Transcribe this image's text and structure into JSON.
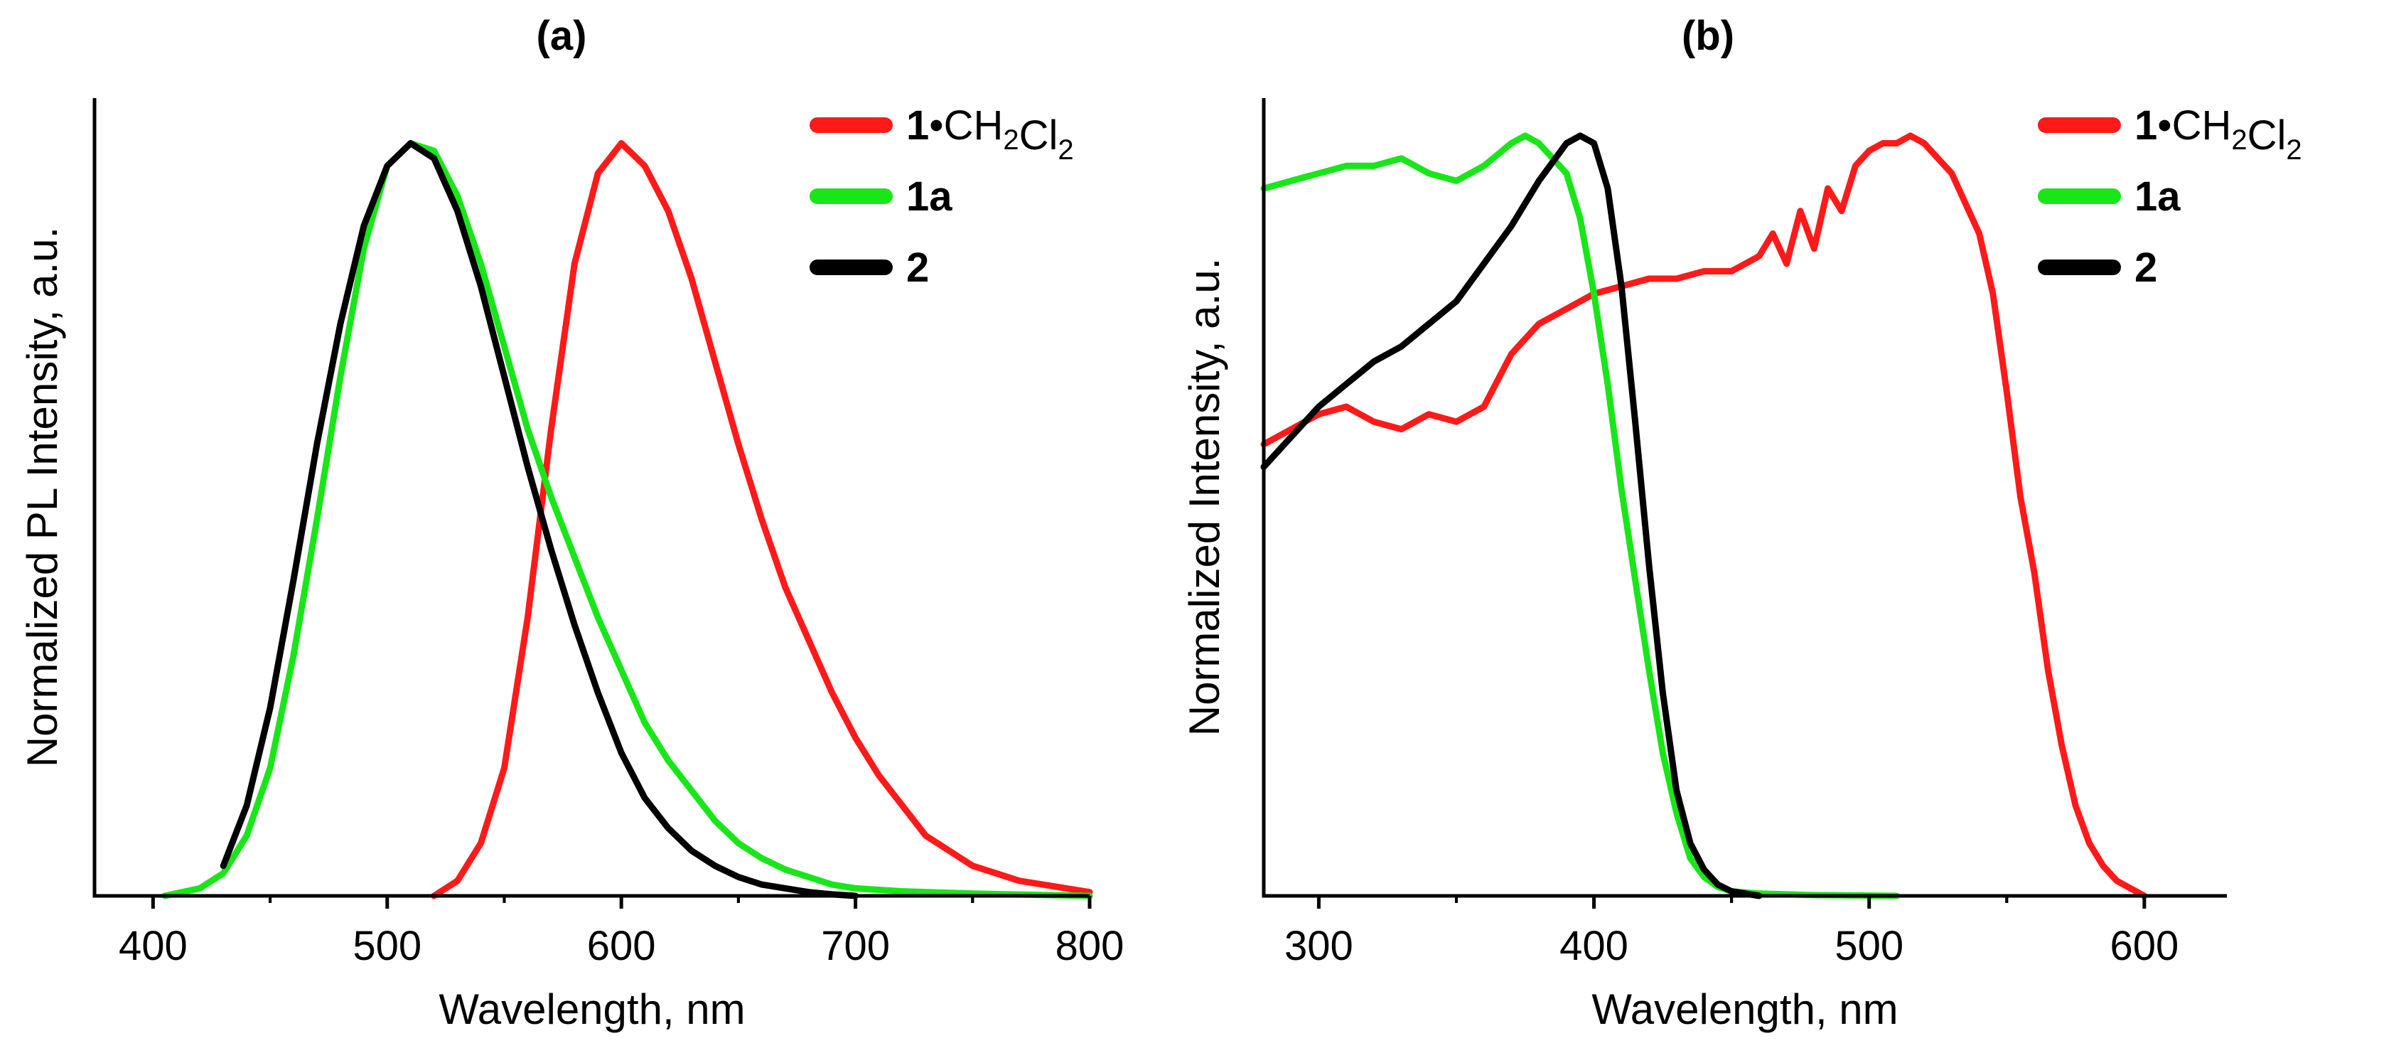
{
  "chart_data": [
    {
      "panel": "a",
      "type": "line",
      "title": "(a)",
      "xlabel": "Wavelength, nm",
      "ylabel": "Normalized PL Intensity, a.u.",
      "xlim": [
        375,
        800
      ],
      "ylim": [
        0,
        1.06
      ],
      "xticks": [
        400,
        500,
        600,
        700,
        800
      ],
      "grid": false,
      "legend": "top-right",
      "series": [
        {
          "name": "1•CH2Cl2",
          "label_main": "1",
          "label_rest": "•CH2Cl2",
          "color": "#ff1a1a",
          "x": [
            520,
            530,
            540,
            550,
            560,
            570,
            580,
            590,
            600,
            610,
            620,
            630,
            640,
            650,
            660,
            670,
            680,
            690,
            700,
            710,
            720,
            730,
            740,
            750,
            760,
            770,
            780,
            790,
            800
          ],
          "y": [
            0.0,
            0.02,
            0.07,
            0.17,
            0.37,
            0.62,
            0.84,
            0.96,
            1.0,
            0.97,
            0.91,
            0.82,
            0.71,
            0.6,
            0.5,
            0.41,
            0.34,
            0.27,
            0.21,
            0.16,
            0.12,
            0.08,
            0.06,
            0.04,
            0.03,
            0.02,
            0.015,
            0.01,
            0.005
          ]
        },
        {
          "name": "1a",
          "label_main": "1a",
          "label_rest": "",
          "color": "#19e619",
          "x": [
            405,
            420,
            430,
            440,
            450,
            460,
            470,
            480,
            490,
            500,
            510,
            520,
            530,
            540,
            550,
            560,
            570,
            580,
            590,
            600,
            610,
            620,
            630,
            640,
            650,
            660,
            670,
            680,
            690,
            700,
            720,
            750,
            800
          ],
          "y": [
            0.0,
            0.01,
            0.03,
            0.08,
            0.17,
            0.32,
            0.5,
            0.69,
            0.86,
            0.97,
            1.0,
            0.99,
            0.93,
            0.84,
            0.73,
            0.62,
            0.53,
            0.45,
            0.37,
            0.3,
            0.23,
            0.18,
            0.14,
            0.1,
            0.07,
            0.05,
            0.035,
            0.025,
            0.015,
            0.01,
            0.006,
            0.003,
            0.0
          ]
        },
        {
          "name": "2",
          "label_main": "2",
          "label_rest": "",
          "color": "#000000",
          "x": [
            430,
            440,
            450,
            460,
            470,
            480,
            490,
            500,
            510,
            520,
            530,
            540,
            550,
            560,
            570,
            580,
            590,
            600,
            610,
            620,
            630,
            640,
            650,
            660,
            670,
            680,
            690,
            700
          ],
          "y": [
            0.04,
            0.12,
            0.25,
            0.42,
            0.6,
            0.76,
            0.89,
            0.97,
            1.0,
            0.98,
            0.91,
            0.81,
            0.69,
            0.57,
            0.46,
            0.36,
            0.27,
            0.19,
            0.13,
            0.09,
            0.06,
            0.04,
            0.025,
            0.015,
            0.01,
            0.005,
            0.002,
            0.0
          ]
        }
      ]
    },
    {
      "panel": "b",
      "type": "line",
      "title": "(b)",
      "xlabel": "Wavelength, nm",
      "ylabel": "Normalized Intensity, a.u.",
      "xlim": [
        280,
        630
      ],
      "ylim": [
        0,
        1.06
      ],
      "xticks": [
        300,
        400,
        500,
        600
      ],
      "grid": false,
      "legend": "top-right",
      "series": [
        {
          "name": "1•CH2Cl2",
          "label_main": "1",
          "label_rest": "•CH2Cl2",
          "color": "#ff1a1a",
          "x": [
            280,
            290,
            300,
            310,
            320,
            330,
            340,
            350,
            360,
            370,
            380,
            390,
            400,
            410,
            420,
            430,
            440,
            450,
            460,
            465,
            470,
            475,
            480,
            485,
            490,
            495,
            500,
            505,
            510,
            515,
            520,
            525,
            530,
            540,
            545,
            550,
            555,
            560,
            565,
            570,
            575,
            580,
            585,
            590,
            595,
            600
          ],
          "y": [
            0.6,
            0.62,
            0.64,
            0.65,
            0.63,
            0.62,
            0.64,
            0.63,
            0.65,
            0.72,
            0.76,
            0.78,
            0.8,
            0.81,
            0.82,
            0.82,
            0.83,
            0.83,
            0.85,
            0.88,
            0.84,
            0.91,
            0.86,
            0.94,
            0.91,
            0.97,
            0.99,
            1.0,
            1.0,
            1.01,
            1.0,
            0.98,
            0.96,
            0.88,
            0.8,
            0.67,
            0.53,
            0.43,
            0.3,
            0.2,
            0.12,
            0.07,
            0.04,
            0.02,
            0.01,
            0.0
          ]
        },
        {
          "name": "1a",
          "label_main": "1a",
          "label_rest": "",
          "color": "#19e619",
          "x": [
            280,
            290,
            300,
            310,
            320,
            330,
            340,
            350,
            355,
            360,
            370,
            375,
            380,
            390,
            395,
            400,
            405,
            410,
            415,
            420,
            425,
            430,
            435,
            440,
            445,
            450,
            460,
            480,
            510
          ],
          "y": [
            0.94,
            0.95,
            0.96,
            0.97,
            0.97,
            0.98,
            0.96,
            0.95,
            0.96,
            0.97,
            1.0,
            1.01,
            1.0,
            0.96,
            0.9,
            0.8,
            0.68,
            0.54,
            0.42,
            0.3,
            0.19,
            0.11,
            0.05,
            0.025,
            0.012,
            0.006,
            0.003,
            0.001,
            0.0
          ]
        },
        {
          "name": "2",
          "label_main": "2",
          "label_rest": "",
          "color": "#000000",
          "x": [
            280,
            290,
            300,
            310,
            320,
            330,
            340,
            350,
            360,
            370,
            380,
            390,
            395,
            400,
            405,
            410,
            415,
            420,
            425,
            430,
            435,
            440,
            445,
            450,
            460
          ],
          "y": [
            0.57,
            0.61,
            0.65,
            0.68,
            0.71,
            0.73,
            0.76,
            0.79,
            0.84,
            0.89,
            0.95,
            1.0,
            1.01,
            1.0,
            0.94,
            0.81,
            0.63,
            0.44,
            0.27,
            0.14,
            0.07,
            0.035,
            0.015,
            0.006,
            0.0
          ]
        }
      ]
    }
  ]
}
